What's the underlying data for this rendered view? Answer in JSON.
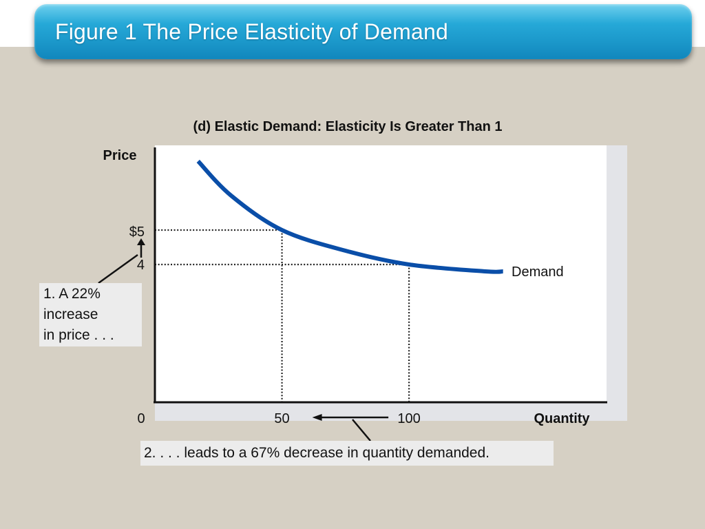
{
  "slide": {
    "title": "Figure 1 The Price Elasticity of Demand"
  },
  "chart_data": {
    "type": "line",
    "title": "(d) Elastic Demand: Elasticity Is Greater Than 1",
    "xlabel": "Quantity",
    "ylabel": "Price",
    "x_ticks": [
      {
        "value": 0,
        "label": "0"
      },
      {
        "value": 50,
        "label": "50"
      },
      {
        "value": 100,
        "label": "100"
      }
    ],
    "y_ticks": [
      {
        "value": 4,
        "label": "4"
      },
      {
        "value": 5,
        "label": "$5"
      }
    ],
    "xlim": [
      0,
      178
    ],
    "ylim": [
      0,
      10
    ],
    "series": [
      {
        "name": "Demand",
        "color": "#0a4ea8",
        "x": [
          17,
          30,
          50,
          75,
          100,
          130,
          137
        ],
        "y": [
          7.0,
          6.0,
          5.0,
          4.4,
          4.0,
          3.8,
          3.8
        ]
      }
    ],
    "reference_points": [
      {
        "x": 50,
        "y": 5
      },
      {
        "x": 100,
        "y": 4
      }
    ],
    "grid": false,
    "annotations": [
      "1. A 22% increase in price . . .",
      "2. . . . leads to a 67% decrease in quantity demanded."
    ]
  },
  "callouts": {
    "price_lines": [
      "1. A 22%",
      "increase",
      "in price . . ."
    ],
    "quantity": "2. . . . leads to a 67% decrease in quantity demanded."
  },
  "colors": {
    "title_bar": "#1b9bd0",
    "curve": "#0a4ea8",
    "background": "#d6d0c4"
  }
}
